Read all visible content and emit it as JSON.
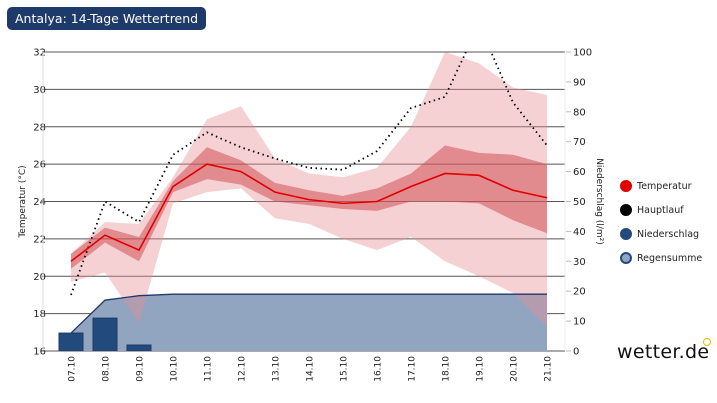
{
  "title": "Antalya: 14-Tage Wettertrend",
  "logo": "wetter.de",
  "colors": {
    "temp": "#e00000",
    "hauptlauf": "#000000",
    "niederschlag": "#234a7c",
    "regensumme": "#91a5c1",
    "band_inner": "#e08a8e",
    "band_outer": "#f5d2d3"
  },
  "legend": [
    {
      "label": "Temperatur",
      "color": "#e00000",
      "border": "#e00000"
    },
    {
      "label": "Hauptlauf",
      "color": "#000000",
      "border": "#000000"
    },
    {
      "label": "Niederschlag",
      "color": "#234a7c",
      "border": "#234a7c"
    },
    {
      "label": "Regensumme",
      "color": "#91a5c1",
      "border": "#234a7c"
    }
  ],
  "chart_data": {
    "type": "line",
    "title": "Antalya: 14-Tage Wettertrend",
    "categories": [
      "07.10",
      "08.10",
      "09.10",
      "10.10",
      "11.10",
      "12.10",
      "13.10",
      "14.10",
      "15.10",
      "16.10",
      "17.10",
      "18.10",
      "19.10",
      "20.10",
      "21.10"
    ],
    "ylabel": "Temperatur (°C)",
    "y2label": "Niederschlag (l/m²)",
    "ylim": [
      16,
      32
    ],
    "yticks": [
      16,
      18,
      20,
      22,
      24,
      26,
      28,
      30,
      32
    ],
    "y2lim": [
      0,
      100
    ],
    "y2ticks": [
      0,
      10,
      20,
      30,
      40,
      50,
      60,
      70,
      80,
      90,
      100
    ],
    "series": [
      {
        "name": "Temperatur",
        "values": [
          20.8,
          22.2,
          21.4,
          24.8,
          26.0,
          25.6,
          24.5,
          24.1,
          23.9,
          24.0,
          24.8,
          25.5,
          25.4,
          24.6,
          24.2
        ]
      },
      {
        "name": "Hauptlauf",
        "values": [
          19.0,
          24.0,
          22.9,
          26.5,
          27.7,
          26.9,
          26.3,
          25.8,
          25.7,
          26.7,
          29.0,
          29.6,
          33.5,
          29.3,
          27.0
        ]
      },
      {
        "name": "Temperatur inner range low",
        "values": [
          20.4,
          21.8,
          20.8,
          24.5,
          25.2,
          24.9,
          24.0,
          23.8,
          23.6,
          23.5,
          24.0,
          24.0,
          23.9,
          23.0,
          22.3
        ]
      },
      {
        "name": "Temperatur inner range high",
        "values": [
          21.2,
          22.6,
          22.1,
          25.1,
          26.9,
          26.2,
          25.0,
          24.6,
          24.3,
          24.7,
          25.5,
          27.0,
          26.6,
          26.5,
          26.0
        ]
      },
      {
        "name": "Temperatur outer range low",
        "values": [
          19.7,
          20.2,
          17.5,
          23.9,
          24.5,
          24.7,
          23.1,
          22.8,
          22.0,
          21.4,
          22.1,
          20.8,
          20.0,
          19.1,
          17.3
        ]
      },
      {
        "name": "Temperatur outer range high",
        "values": [
          21.2,
          22.9,
          22.8,
          25.3,
          28.4,
          29.1,
          26.3,
          25.5,
          25.3,
          25.8,
          28.0,
          32.0,
          31.4,
          30.1,
          29.7
        ]
      },
      {
        "name": "Niederschlag",
        "axis": "y2",
        "values": [
          6,
          11,
          2,
          0,
          0,
          0,
          0,
          0,
          0,
          0,
          0,
          0,
          0,
          0,
          0
        ]
      },
      {
        "name": "Regensumme",
        "axis": "y2",
        "values": [
          6,
          17,
          18.5,
          19,
          19,
          19,
          19,
          19,
          19,
          19,
          19,
          19,
          19,
          19,
          19
        ]
      }
    ],
    "grid": true,
    "legend_position": "right"
  }
}
